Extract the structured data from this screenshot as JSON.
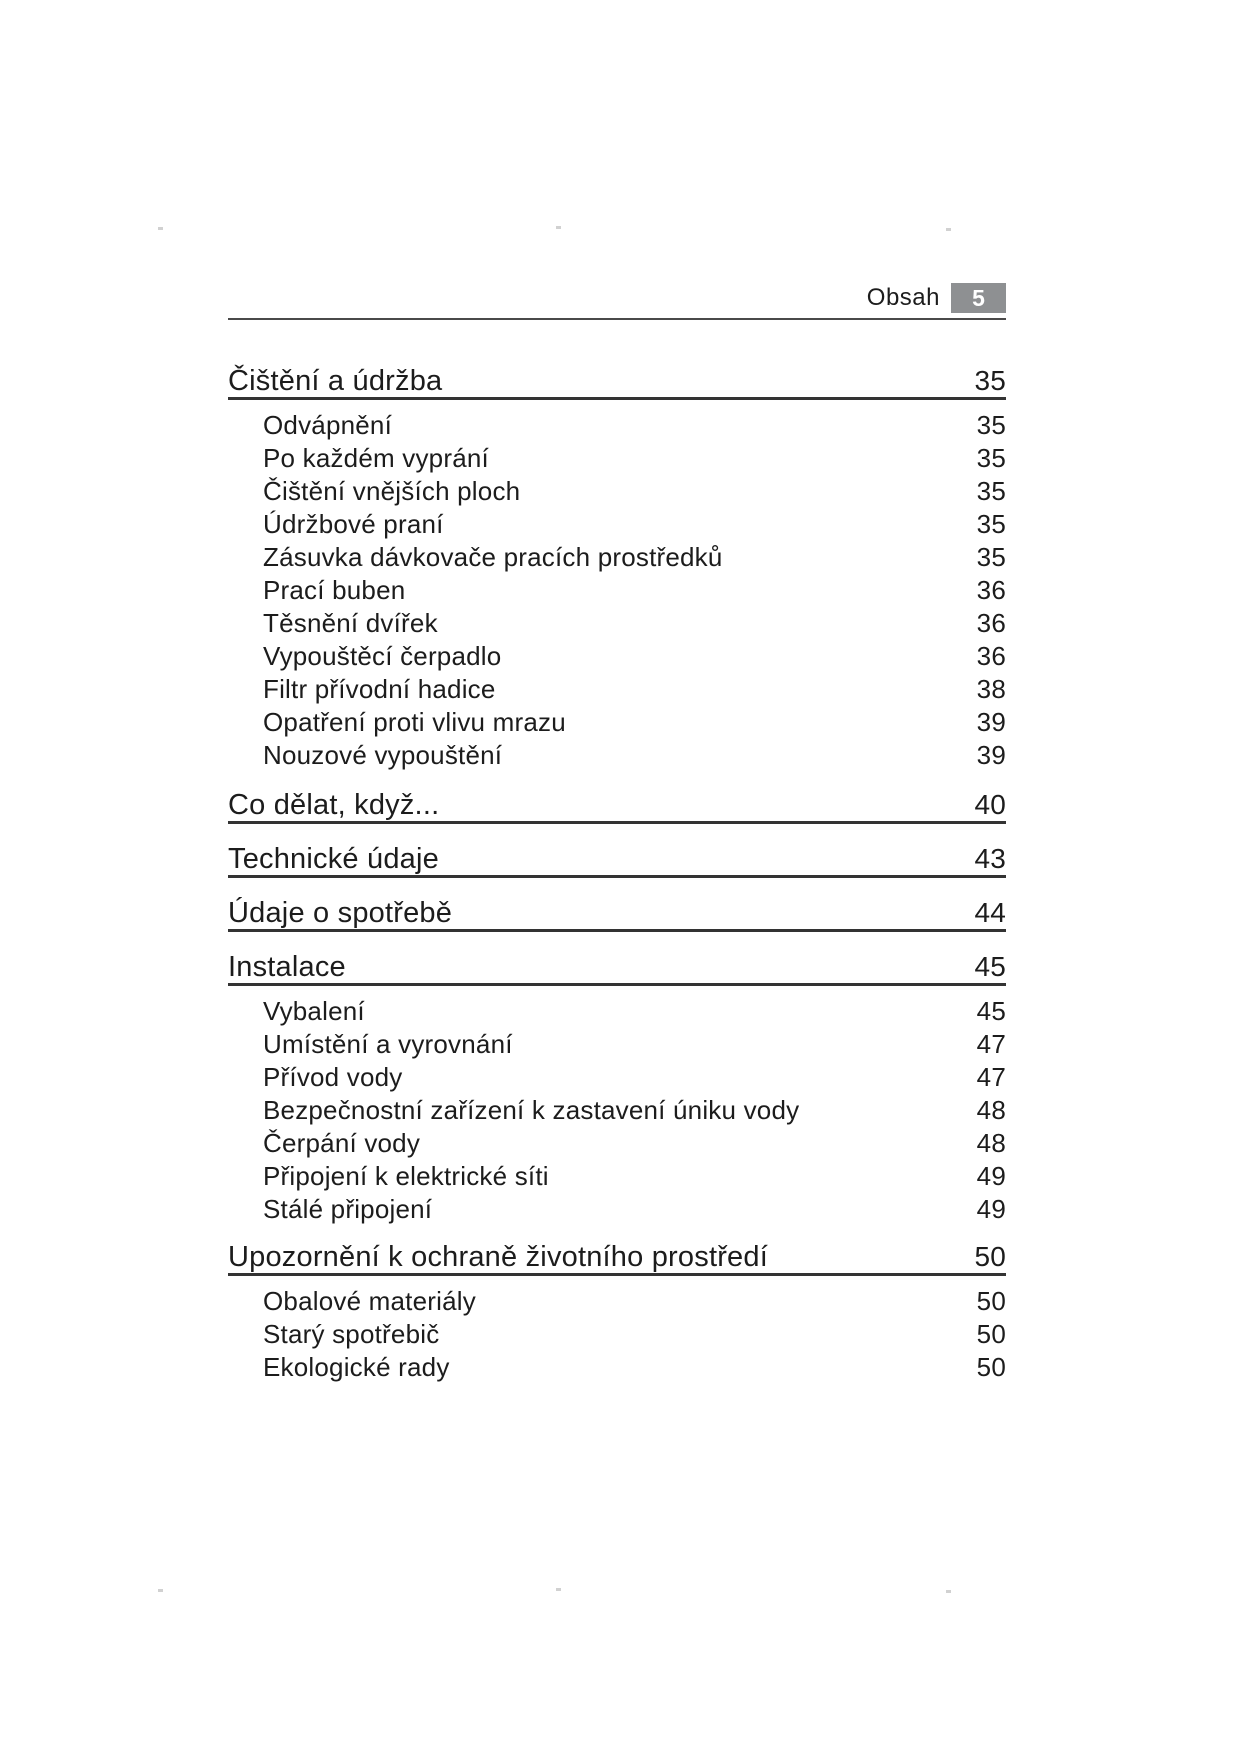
{
  "header": {
    "label": "Obsah",
    "page_number": "5"
  },
  "colors": {
    "badge_bg": "#8e9092",
    "badge_text": "#ffffff",
    "text": "#1c1c1c",
    "heading_rule": "#333333",
    "header_rule": "#4a4a4a"
  },
  "toc": {
    "sections": [
      {
        "title": "Čištění a údržba",
        "page": "35",
        "items": [
          {
            "label": "Odvápnění",
            "page": "35"
          },
          {
            "label": "Po každém vyprání",
            "page": "35"
          },
          {
            "label": "Čištění vnějších ploch",
            "page": "35"
          },
          {
            "label": "Údržbové praní",
            "page": "35"
          },
          {
            "label": "Zásuvka dávkovače pracích prostředků",
            "page": "35"
          },
          {
            "label": "Prací buben",
            "page": "36"
          },
          {
            "label": "Těsnění dvířek",
            "page": "36"
          },
          {
            "label": "Vypouštěcí čerpadlo",
            "page": "36"
          },
          {
            "label": "Filtr přívodní hadice",
            "page": "38"
          },
          {
            "label": "Opatření proti vlivu mrazu",
            "page": "39"
          },
          {
            "label": "Nouzové vypouštění",
            "page": "39"
          }
        ]
      },
      {
        "title": "Co dělat, když...",
        "page": "40",
        "items": []
      },
      {
        "title": "Technické údaje",
        "page": "43",
        "items": []
      },
      {
        "title": "Údaje o spotřebě",
        "page": "44",
        "items": []
      },
      {
        "title": "Instalace",
        "page": "45",
        "items": [
          {
            "label": "Vybalení",
            "page": "45"
          },
          {
            "label": "Umístění a vyrovnání",
            "page": "47"
          },
          {
            "label": "Přívod vody",
            "page": "47"
          },
          {
            "label": "Bezpečnostní zařízení k zastavení úniku vody",
            "page": "48"
          },
          {
            "label": "Čerpání vody",
            "page": "48"
          },
          {
            "label": "Připojení k elektrické síti",
            "page": "49"
          },
          {
            "label": "Stálé připojení",
            "page": "49"
          }
        ]
      },
      {
        "title": "Upozornění k ochraně životního prostředí",
        "page": "50",
        "items": [
          {
            "label": "Obalové materiály",
            "page": "50"
          },
          {
            "label": "Starý spotřebič",
            "page": "50"
          },
          {
            "label": "Ekologické rady",
            "page": "50"
          }
        ]
      }
    ]
  }
}
